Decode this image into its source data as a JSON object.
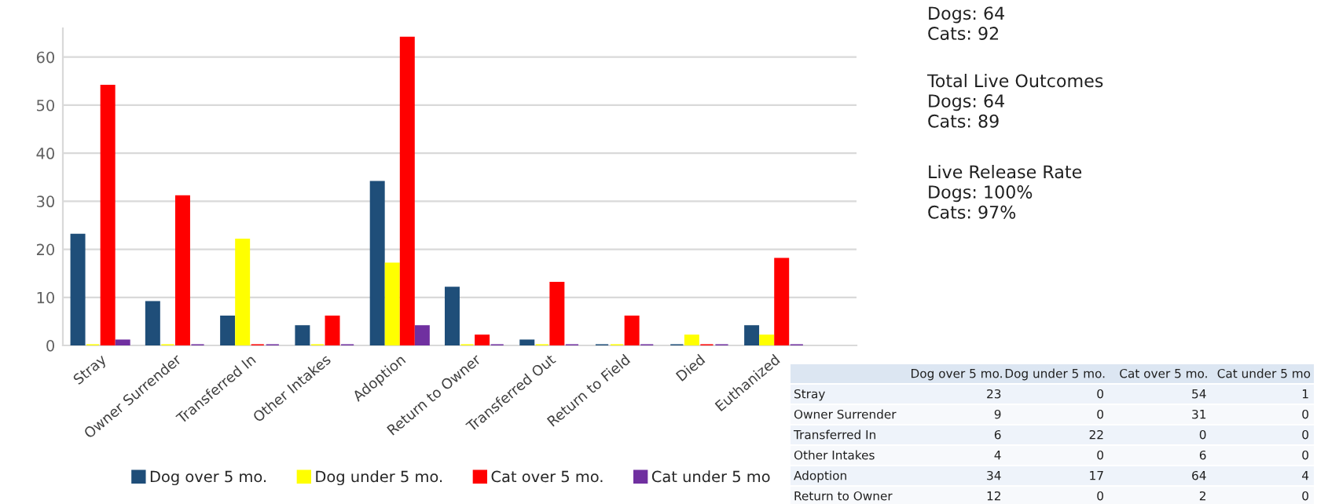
{
  "chart_data": [
    {
      "type": "bar",
      "categories": [
        "Stray",
        "Owner Surrender",
        "Transferred In",
        "Other Intakes",
        "Adoption",
        "Return to Owner",
        "Transferred Out",
        "Return to Field",
        "Died",
        "Euthanized"
      ],
      "series": [
        {
          "name": "Dog over 5 mo.",
          "color": "#1f4e79",
          "values": [
            23,
            9,
            6,
            4,
            34,
            12,
            1,
            0,
            0,
            4
          ]
        },
        {
          "name": "Dog under 5 mo.",
          "color": "#ffff00",
          "values": [
            0,
            0,
            22,
            0,
            17,
            0,
            0,
            0,
            2,
            2
          ]
        },
        {
          "name": "Cat over 5 mo.",
          "color": "#ff0000",
          "values": [
            54,
            31,
            0,
            6,
            64,
            2,
            13,
            6,
            0,
            18
          ]
        },
        {
          "name": "Cat under 5 mo",
          "color": "#7030a0",
          "values": [
            1,
            0,
            0,
            0,
            4,
            0,
            0,
            0,
            0,
            0
          ]
        }
      ],
      "ylim": [
        0,
        66
      ],
      "yticks": [
        0,
        10,
        20,
        30,
        40,
        50,
        60
      ],
      "grid": "y",
      "legend": "bottom",
      "annotations": [
        "Dogs: 64\nCats: 92",
        "Total Live Outcomes\nDogs: 64\nCats: 89",
        "Live Release Rate\nDogs: 100%\nCats: 97%"
      ]
    },
    {
      "type": "other",
      "categories": [
        "Dog over 5 mo.",
        "Dog under 5 mo.",
        "Cat over 5 mo.",
        "Cat under 5 mo"
      ],
      "y_categories": [
        "Stray",
        "Owner Surrender",
        "Transferred In",
        "Other Intakes",
        "Adoption",
        "Return to Owner"
      ],
      "annotations": [
        "23",
        "0",
        "54",
        "1",
        "9",
        "0",
        "31",
        "0",
        "6",
        "22",
        "0",
        "0",
        "4",
        "0",
        "6",
        "0",
        "34",
        "17",
        "64",
        "4",
        "12",
        "0",
        "2",
        "0"
      ]
    }
  ]
}
